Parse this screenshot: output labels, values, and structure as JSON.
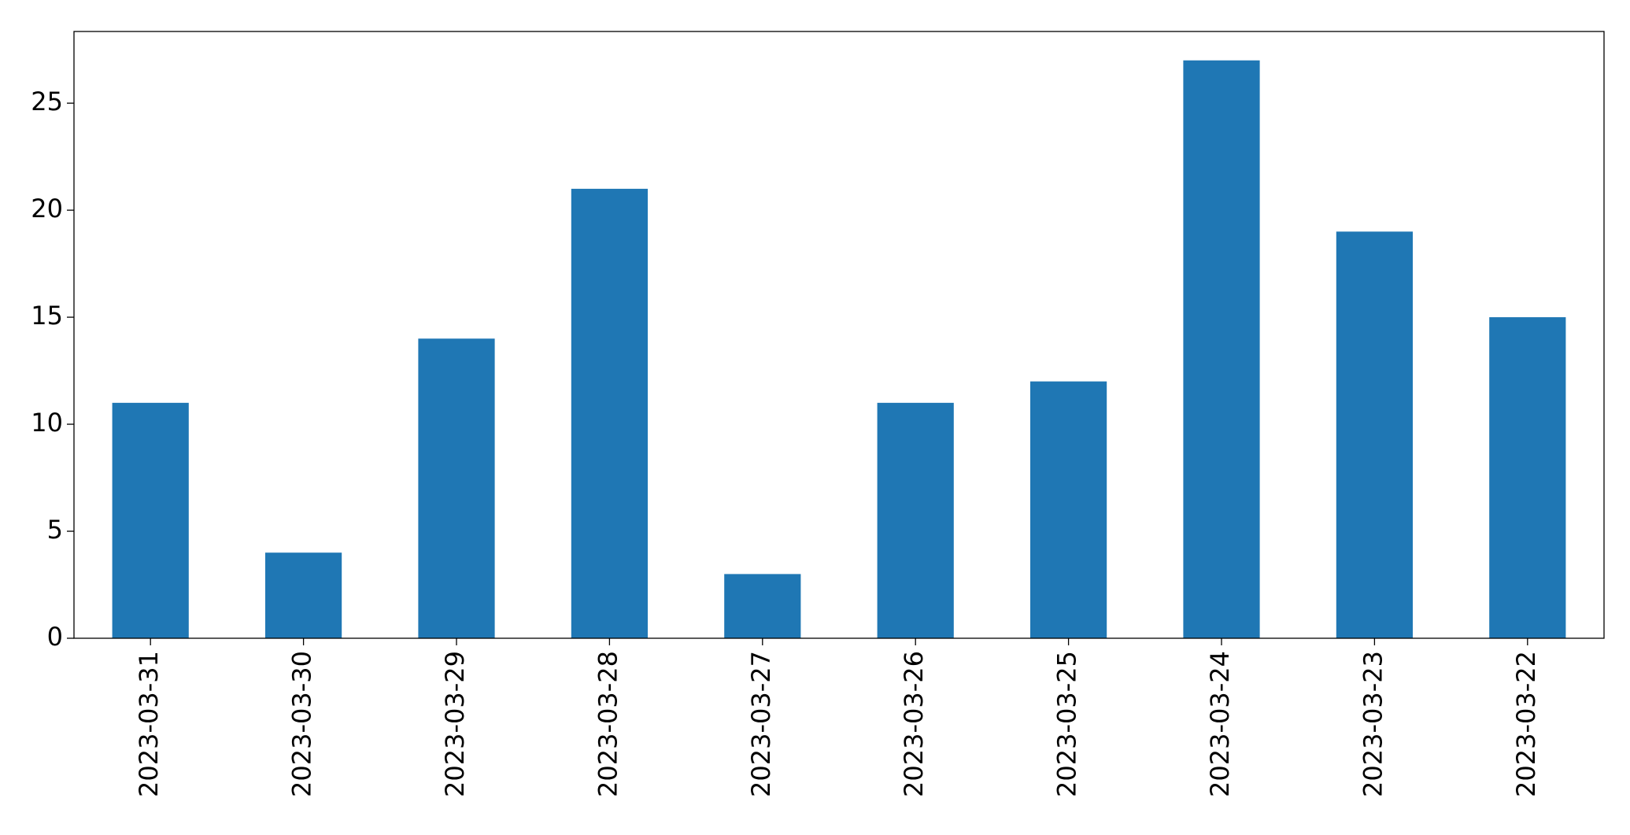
{
  "chart_data": {
    "type": "bar",
    "categories": [
      "2023-03-31",
      "2023-03-30",
      "2023-03-29",
      "2023-03-28",
      "2023-03-27",
      "2023-03-26",
      "2023-03-25",
      "2023-03-24",
      "2023-03-23",
      "2023-03-22"
    ],
    "values": [
      11,
      4,
      14,
      21,
      3,
      11,
      12,
      27,
      19,
      15
    ],
    "color": "#1f77b4",
    "ylim": [
      0,
      28.35
    ],
    "yticks": [
      0,
      5,
      10,
      15,
      20,
      25
    ],
    "grid": false
  }
}
